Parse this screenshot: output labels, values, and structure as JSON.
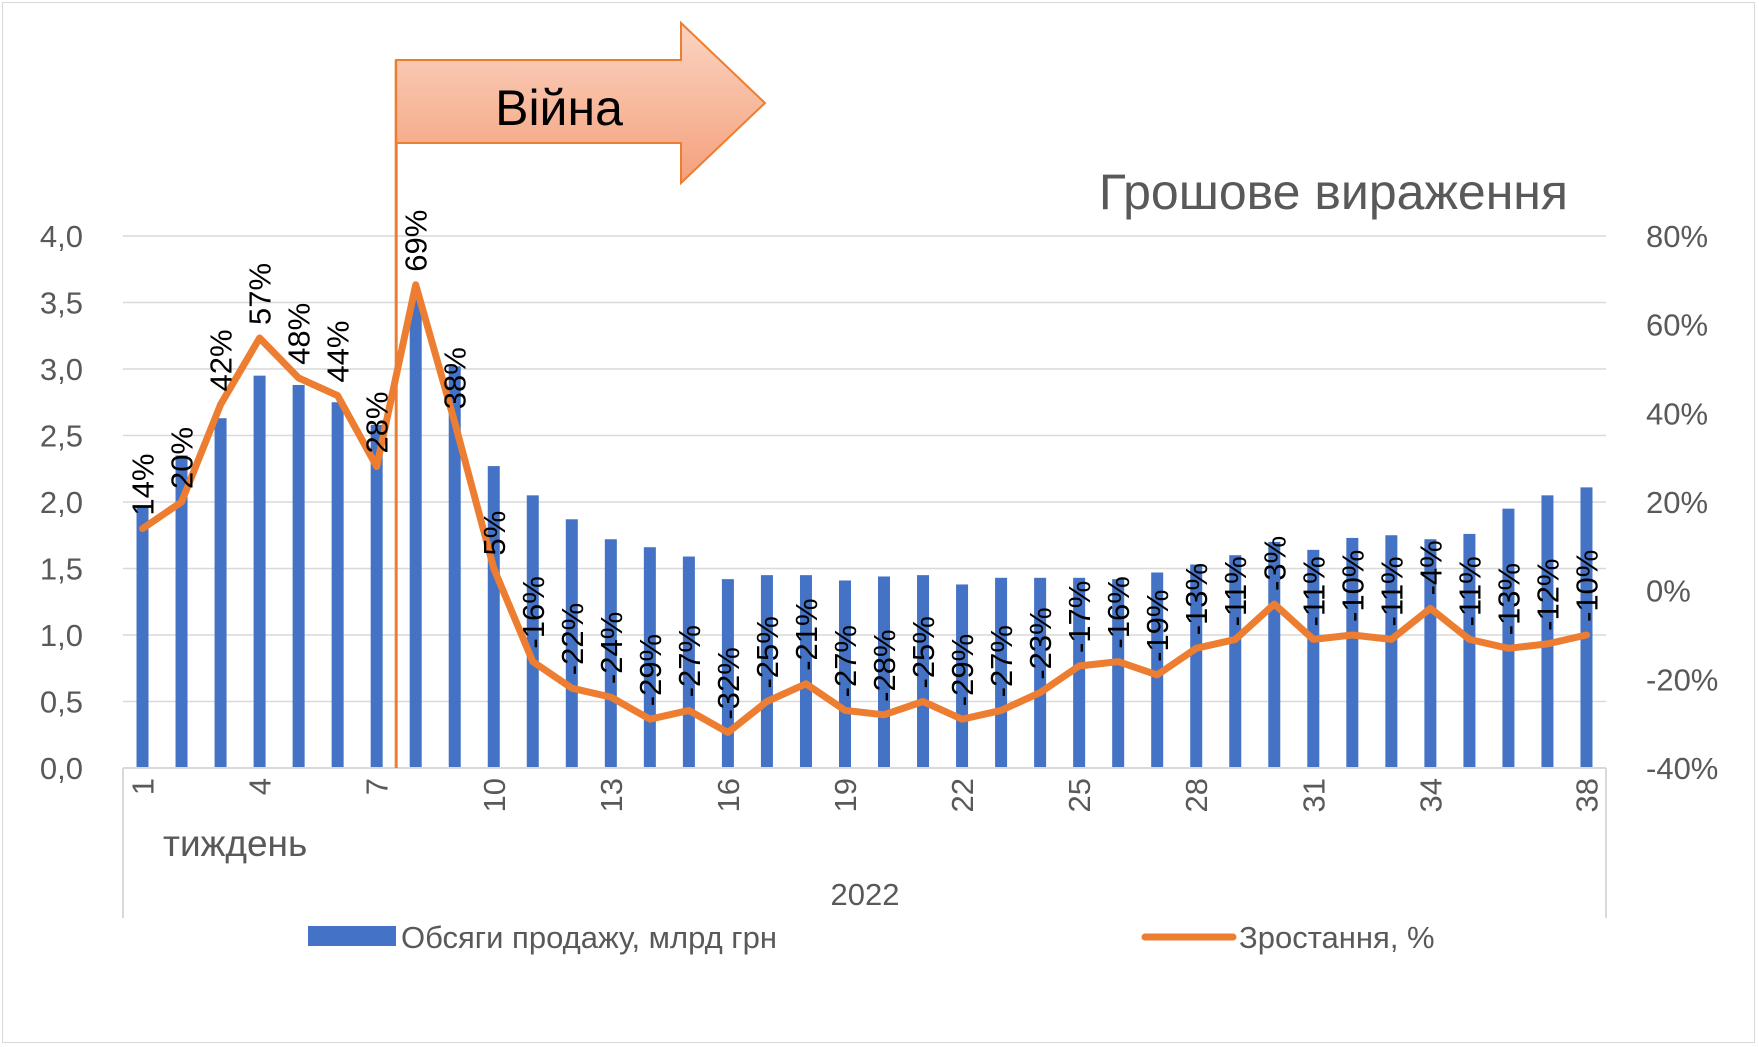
{
  "chart_data": {
    "type": "bar+line",
    "title": "Грошове вираження",
    "annotation": "Війна",
    "xlabel": "тиждень",
    "year_label": "2022",
    "x_tick_labels": [
      "1",
      "4",
      "7",
      "10",
      "13",
      "16",
      "19",
      "22",
      "25",
      "28",
      "31",
      "34",
      "38"
    ],
    "weeks": [
      1,
      2,
      3,
      4,
      5,
      6,
      7,
      8,
      9,
      10,
      11,
      12,
      13,
      14,
      15,
      16,
      17,
      18,
      19,
      20,
      21,
      22,
      23,
      24,
      25,
      26,
      27,
      28,
      29,
      30,
      31,
      32,
      33,
      34,
      35,
      36,
      37,
      38
    ],
    "y_left": {
      "min": 0,
      "max": 4,
      "ticks": [
        "0,0",
        "0,5",
        "1,0",
        "1,5",
        "2,0",
        "2,5",
        "3,0",
        "3,5",
        "4,0"
      ]
    },
    "y_right": {
      "min": -40,
      "max": 80,
      "ticks": [
        "-40%",
        "-20%",
        "0%",
        "20%",
        "40%",
        "60%",
        "80%"
      ]
    },
    "series": [
      {
        "name": "Обсяги продажу, млрд грн",
        "kind": "bar",
        "color": "#4472C4",
        "values": [
          1.97,
          2.35,
          2.63,
          2.95,
          2.88,
          2.75,
          2.58,
          3.52,
          3.02,
          2.27,
          2.05,
          1.87,
          1.72,
          1.66,
          1.59,
          1.42,
          1.45,
          1.45,
          1.41,
          1.44,
          1.45,
          1.38,
          1.43,
          1.43,
          1.43,
          1.42,
          1.47,
          1.53,
          1.6,
          1.7,
          1.64,
          1.73,
          1.75,
          1.72,
          1.76,
          1.95,
          2.05,
          2.11
        ]
      },
      {
        "name": "Зростання, %",
        "kind": "line",
        "color": "#ED7D31",
        "values": [
          14,
          20,
          42,
          57,
          48,
          44,
          28,
          69,
          38,
          5,
          -16,
          -22,
          -24,
          -29,
          -27,
          -32,
          -25,
          -21,
          -27,
          -28,
          -25,
          -29,
          -27,
          -23,
          -17,
          -16,
          -19,
          -13,
          -11,
          -3,
          -11,
          -10,
          -11,
          -4,
          -11,
          -13,
          -12,
          -10
        ],
        "labels": [
          "14%",
          "20%",
          "42%",
          "57%",
          "48%",
          "44%",
          "28%",
          "69%",
          "38%",
          "5%",
          "-16%",
          "-22%",
          "-24%",
          "-29%",
          "-27%",
          "-32%",
          "-25%",
          "-21%",
          "-27%",
          "-28%",
          "-25%",
          "-29%",
          "-27%",
          "-23%",
          "-17%",
          "-16%",
          "-19%",
          "-13%",
          "-11%",
          "-3%",
          "-11%",
          "-10%",
          "-11%",
          "-4%",
          "-11%",
          "-13%",
          "-12%",
          "-10%"
        ]
      }
    ],
    "war_marker_week": 7.5,
    "grid": true,
    "legend_position": "bottom",
    "colors": {
      "axis_text": "#595959",
      "gridline": "#d9d9d9",
      "arrow_fill": "#F4A584",
      "marker": "#ED7D31"
    }
  }
}
